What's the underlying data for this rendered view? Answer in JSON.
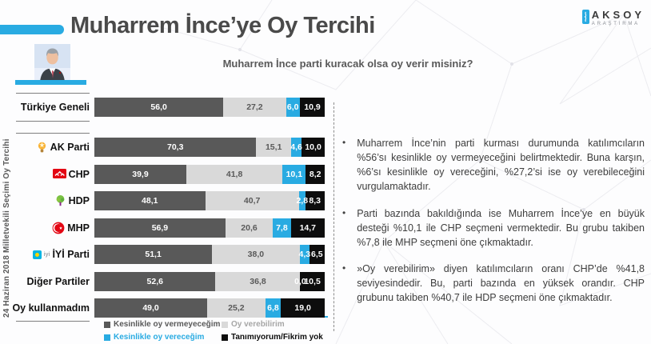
{
  "header": {
    "title": "Muharrem İnce’ye Oy Tercihi",
    "subtitle": "Muharrem İnce parti kuracak olsa oy verir misiniz?",
    "logo_name": "AKSOY",
    "logo_tagline": "ARAŞTIRMA"
  },
  "side_label": "24 Haziran 2018 Milletvekili Seçimi Oy Tercihi",
  "chart_data": {
    "type": "bar",
    "orientation": "horizontal",
    "stacked": true,
    "xlim": [
      0,
      100
    ],
    "grid": false,
    "legend_position": "bottom",
    "categories": [
      {
        "label": "Türkiye Geneli",
        "icon": "",
        "icon_text": ""
      },
      {
        "label": "AK Parti",
        "icon": "akparti-icon",
        "icon_text": ""
      },
      {
        "label": "CHP",
        "icon": "chp-icon",
        "icon_text": ""
      },
      {
        "label": "HDP",
        "icon": "hdp-icon",
        "icon_text": ""
      },
      {
        "label": "MHP",
        "icon": "mhp-icon",
        "icon_text": ""
      },
      {
        "label": "İYİ Parti",
        "icon": "iyi-icon",
        "icon_text": "iyi"
      },
      {
        "label": "Diğer Partiler",
        "icon": "",
        "icon_text": ""
      },
      {
        "label": "Oy kullanmadım",
        "icon": "",
        "icon_text": ""
      }
    ],
    "series": [
      {
        "name": "Kesinlikle oy vermeyeceğim",
        "color": "#595959",
        "text_color": "#ffffff",
        "legend_text_color": "#595959",
        "values": [
          56.0,
          70.3,
          39.9,
          48.1,
          56.9,
          51.1,
          52.6,
          49.0
        ],
        "labels": [
          "56,0",
          "70,3",
          "39,9",
          "48,1",
          "56,9",
          "51,1",
          "52,6",
          "49,0"
        ]
      },
      {
        "name": "Oy verebilirim",
        "color": "#d9d9d9",
        "text_color": "#595959",
        "legend_text_color": "#a6a6a6",
        "values": [
          27.2,
          15.1,
          41.8,
          40.7,
          20.6,
          38.0,
          36.8,
          25.2
        ],
        "labels": [
          "27,2",
          "15,1",
          "41,8",
          "40,7",
          "20,6",
          "38,0",
          "36,8",
          "25,2"
        ]
      },
      {
        "name": "Kesinlikle oy vereceğim",
        "color": "#29abe2",
        "text_color": "#ffffff",
        "legend_text_color": "#29abe2",
        "values": [
          6.0,
          4.6,
          10.1,
          2.8,
          7.8,
          4.3,
          0.0,
          6.8
        ],
        "labels": [
          "6,0",
          "4,6",
          "10,1",
          "2,8",
          "7,8",
          "4,3",
          "0,0",
          "6,8"
        ]
      },
      {
        "name": "Tanımıyorum/Fikrim yok",
        "color": "#0d0d0d",
        "text_color": "#ffffff",
        "legend_text_color": "#0d0d0d",
        "values": [
          10.9,
          10.0,
          8.2,
          8.3,
          14.7,
          6.5,
          10.5,
          19.0
        ],
        "labels": [
          "10,9",
          "10,0",
          "8,2",
          "8,3",
          "14,7",
          "6,5",
          "10,5",
          "19,0"
        ]
      }
    ]
  },
  "bullets": [
    {
      "text": "Muharrem İnce’nin parti kurması durumunda katılımcıların %56’sı kesinlikle oy vermeyeceğini belirtmektedir. Buna karşın, %6’sı kesinlikle oy vereceğini, %27,2’si ise oy verebileceğini vurgulamaktadır."
    },
    {
      "text": "Parti bazında bakıldığında ise Muharrem İnce’ye en büyük desteği %10,1 ile CHP seçmeni vermektedir. Bu grubu takiben %7,8 ile MHP seçmeni öne çıkmaktadır."
    },
    {
      "text": "»Oy verebilirim» diyen katılımcıların oranı CHP’de %41,8 seviyesindedir. Bu, parti bazında en yüksek orandır. CHP grubunu takiben %40,7 ile HDP seçmeni öne çıkmaktadır."
    }
  ],
  "colors": {
    "accent_blue": "#29abe2",
    "bar_dark_gray": "#595959",
    "bar_light_gray": "#d9d9d9",
    "bar_black": "#0d0d0d",
    "title_gray": "#4a4a4a"
  }
}
